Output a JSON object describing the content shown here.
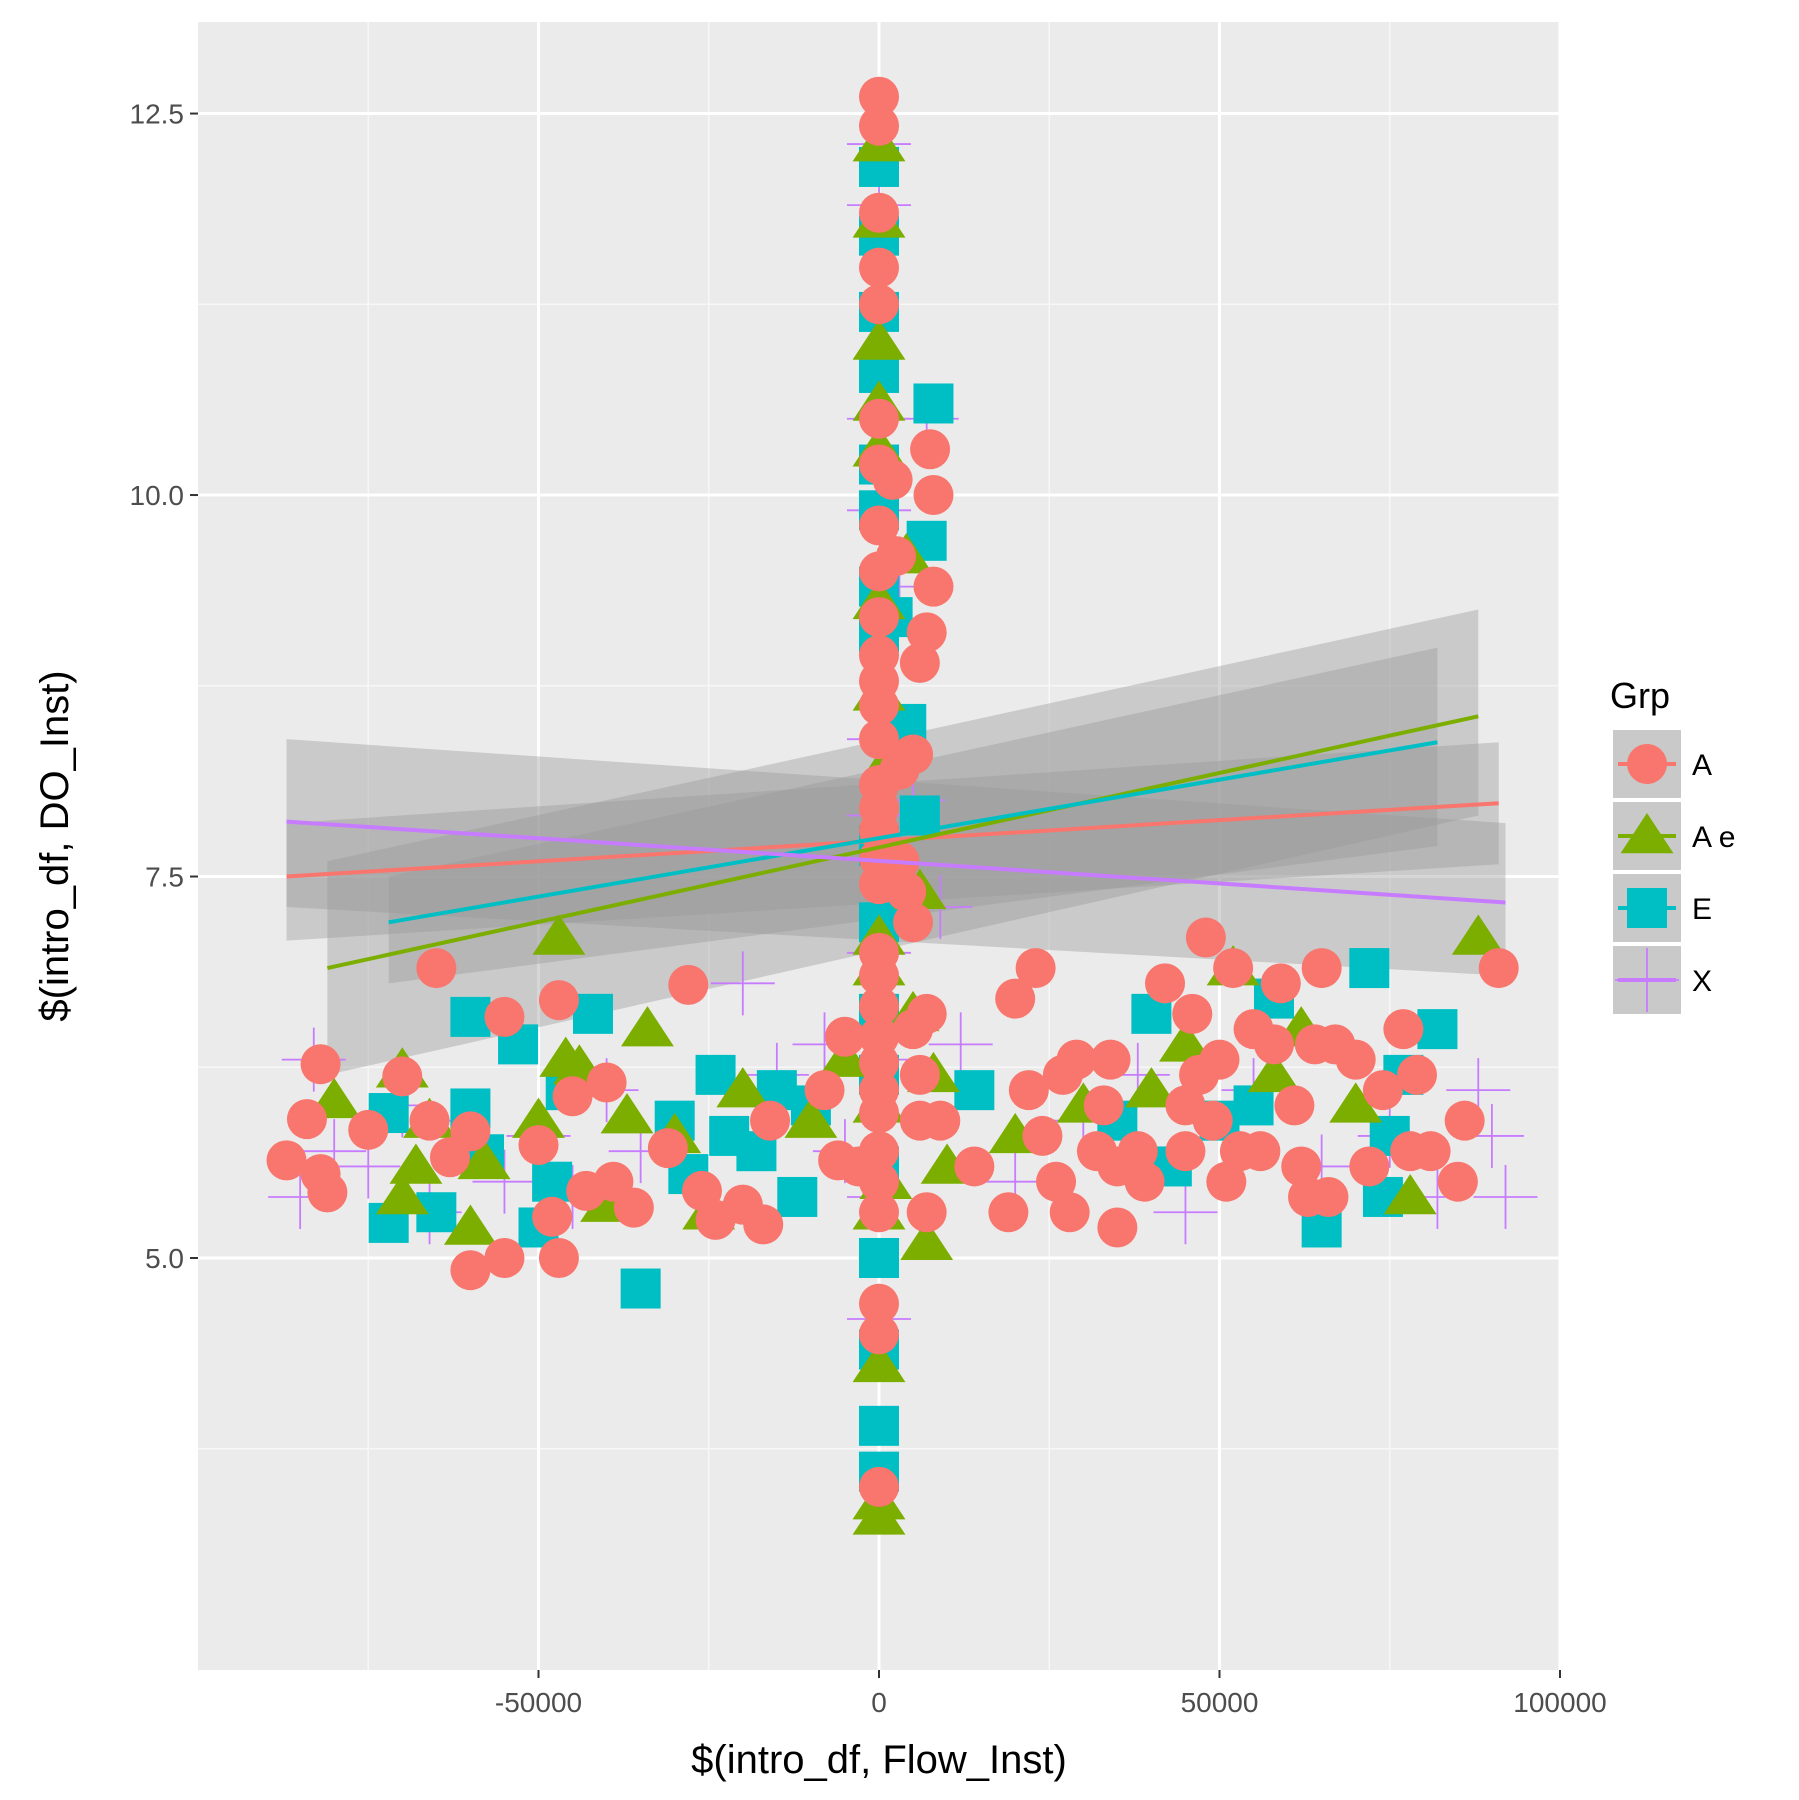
{
  "chart_data": {
    "type": "scatter",
    "xlabel": "$(intro_df, Flow_Inst)",
    "ylabel": "$(intro_df, DO_Inst)",
    "xlim": [
      -100000,
      100000
    ],
    "ylim": [
      2.3,
      13.1
    ],
    "x_ticks": [
      -50000,
      0,
      50000,
      100000
    ],
    "x_tick_labels": [
      "-50000",
      "0",
      "50000",
      "100000"
    ],
    "y_ticks": [
      5.0,
      7.5,
      10.0,
      12.5
    ],
    "y_tick_labels": [
      "5.0",
      "7.5",
      "10.0",
      "12.5"
    ],
    "grid": true,
    "background": "#ebebeb",
    "legend": {
      "title": "Grp",
      "placement": "right"
    },
    "series": [
      {
        "name": "A",
        "shape": "circle",
        "color": "#f8766d",
        "trend": {
          "x": [
            -87000,
            91000
          ],
          "y": [
            7.5,
            7.98
          ],
          "ci_low": [
            7.08,
            7.58
          ],
          "ci_high": [
            7.85,
            8.38
          ]
        },
        "points": [
          [
            -87000,
            5.64
          ],
          [
            -82000,
            5.55
          ],
          [
            -81000,
            5.43
          ],
          [
            -82000,
            6.27
          ],
          [
            -84000,
            5.91
          ],
          [
            -75000,
            5.84
          ],
          [
            -70000,
            6.19
          ],
          [
            -66000,
            5.9
          ],
          [
            -65000,
            6.9
          ],
          [
            -63000,
            5.66
          ],
          [
            -60000,
            5.83
          ],
          [
            -60000,
            4.92
          ],
          [
            -55000,
            6.58
          ],
          [
            -55000,
            5.0
          ],
          [
            -50000,
            5.74
          ],
          [
            -48000,
            5.27
          ],
          [
            -47000,
            6.69
          ],
          [
            -47000,
            5.0
          ],
          [
            -45000,
            6.06
          ],
          [
            -43000,
            5.44
          ],
          [
            -40000,
            6.15
          ],
          [
            -39000,
            5.5
          ],
          [
            -36000,
            5.33
          ],
          [
            -31000,
            5.72
          ],
          [
            -28000,
            6.79
          ],
          [
            -26000,
            5.44
          ],
          [
            -24000,
            5.25
          ],
          [
            -20000,
            5.35
          ],
          [
            -17000,
            5.22
          ],
          [
            -16000,
            5.9
          ],
          [
            -8000,
            6.1
          ],
          [
            -6000,
            5.64
          ],
          [
            -5000,
            6.45
          ],
          [
            -3000,
            5.6
          ],
          [
            0,
            12.61
          ],
          [
            0,
            12.42
          ],
          [
            0,
            11.85
          ],
          [
            0,
            11.49
          ],
          [
            0,
            11.25
          ],
          [
            0,
            10.5
          ],
          [
            0,
            10.2
          ],
          [
            0,
            9.8
          ],
          [
            0,
            9.5
          ],
          [
            0,
            9.2
          ],
          [
            0,
            8.95
          ],
          [
            0,
            8.78
          ],
          [
            0,
            8.62
          ],
          [
            0,
            8.4
          ],
          [
            0,
            8.1
          ],
          [
            0,
            7.95
          ],
          [
            0,
            7.8
          ],
          [
            0,
            7.62
          ],
          [
            0,
            7.45
          ],
          [
            0,
            7.0
          ],
          [
            0,
            6.85
          ],
          [
            0,
            6.65
          ],
          [
            0,
            6.45
          ],
          [
            0,
            6.28
          ],
          [
            0,
            6.1
          ],
          [
            0,
            5.95
          ],
          [
            0,
            5.7
          ],
          [
            0,
            5.5
          ],
          [
            0,
            5.3
          ],
          [
            0,
            4.7
          ],
          [
            0,
            4.5
          ],
          [
            0,
            3.5
          ],
          [
            2000,
            10.1
          ],
          [
            2500,
            9.6
          ],
          [
            3000,
            8.2
          ],
          [
            3000,
            7.6
          ],
          [
            4000,
            7.4
          ],
          [
            5000,
            8.3
          ],
          [
            5000,
            7.2
          ],
          [
            5000,
            6.5
          ],
          [
            6000,
            8.9
          ],
          [
            6000,
            6.2
          ],
          [
            6000,
            5.9
          ],
          [
            7000,
            9.1
          ],
          [
            7000,
            5.3
          ],
          [
            7000,
            6.6
          ],
          [
            8000,
            9.4
          ],
          [
            8000,
            10.0
          ],
          [
            7500,
            10.3
          ],
          [
            9000,
            5.9
          ],
          [
            14000,
            5.6
          ],
          [
            19000,
            5.3
          ],
          [
            20000,
            6.7
          ],
          [
            22000,
            6.1
          ],
          [
            23000,
            6.9
          ],
          [
            24000,
            5.8
          ],
          [
            26000,
            5.5
          ],
          [
            27000,
            6.2
          ],
          [
            28000,
            5.3
          ],
          [
            29000,
            6.3
          ],
          [
            32000,
            5.7
          ],
          [
            33000,
            6.0
          ],
          [
            34000,
            6.3
          ],
          [
            35000,
            5.2
          ],
          [
            35000,
            5.6
          ],
          [
            38000,
            5.7
          ],
          [
            39000,
            5.5
          ],
          [
            42000,
            6.8
          ],
          [
            45000,
            6.0
          ],
          [
            45000,
            5.7
          ],
          [
            46000,
            6.6
          ],
          [
            47000,
            6.2
          ],
          [
            48000,
            7.1
          ],
          [
            49000,
            5.9
          ],
          [
            50000,
            6.3
          ],
          [
            51000,
            5.5
          ],
          [
            52000,
            6.9
          ],
          [
            53000,
            5.7
          ],
          [
            55000,
            6.5
          ],
          [
            56000,
            5.7
          ],
          [
            58000,
            6.4
          ],
          [
            59000,
            6.8
          ],
          [
            61000,
            6.0
          ],
          [
            62000,
            5.6
          ],
          [
            63000,
            5.4
          ],
          [
            64000,
            6.4
          ],
          [
            65000,
            6.9
          ],
          [
            66000,
            5.4
          ],
          [
            67000,
            6.4
          ],
          [
            70000,
            6.3
          ],
          [
            72000,
            5.6
          ],
          [
            74000,
            6.1
          ],
          [
            77000,
            6.5
          ],
          [
            78000,
            5.7
          ],
          [
            79000,
            6.2
          ],
          [
            81000,
            5.7
          ],
          [
            85000,
            5.5
          ],
          [
            86000,
            5.9
          ],
          [
            91000,
            6.9
          ]
        ]
      },
      {
        "name": "A e",
        "shape": "triangle",
        "color": "#7cae00",
        "trend": {
          "x": [
            -81000,
            88000
          ],
          "y": [
            6.9,
            8.55
          ],
          "ci_low": [
            6.2,
            7.9
          ],
          "ci_high": [
            7.6,
            9.25
          ]
        },
        "points": [
          [
            -80000,
            6.03
          ],
          [
            -70000,
            6.23
          ],
          [
            -70000,
            5.4
          ],
          [
            -68000,
            5.6
          ],
          [
            -66000,
            5.9
          ],
          [
            -60000,
            5.2
          ],
          [
            -58000,
            5.63
          ],
          [
            -50000,
            5.9
          ],
          [
            -47000,
            7.1
          ],
          [
            -46000,
            6.3
          ],
          [
            -44000,
            6.25
          ],
          [
            -40000,
            5.35
          ],
          [
            -37000,
            5.93
          ],
          [
            -34000,
            6.5
          ],
          [
            -30000,
            5.8
          ],
          [
            -25000,
            5.3
          ],
          [
            -20000,
            6.1
          ],
          [
            -10000,
            5.9
          ],
          [
            -5000,
            6.3
          ],
          [
            0,
            12.3
          ],
          [
            0,
            11.8
          ],
          [
            0,
            11.0
          ],
          [
            0,
            10.6
          ],
          [
            0,
            10.3
          ],
          [
            0,
            9.3
          ],
          [
            0,
            8.7
          ],
          [
            0,
            7.1
          ],
          [
            0,
            6.9
          ],
          [
            0,
            6.0
          ],
          [
            0,
            5.3
          ],
          [
            0,
            4.3
          ],
          [
            0,
            3.4
          ],
          [
            0,
            3.3
          ],
          [
            1000,
            5.5
          ],
          [
            2000,
            8.3
          ],
          [
            4000,
            9.6
          ],
          [
            5000,
            6.6
          ],
          [
            6000,
            7.4
          ],
          [
            7000,
            5.1
          ],
          [
            8000,
            6.2
          ],
          [
            10000,
            5.6
          ],
          [
            20000,
            5.8
          ],
          [
            30000,
            6.0
          ],
          [
            40000,
            6.1
          ],
          [
            45000,
            6.4
          ],
          [
            52000,
            6.9
          ],
          [
            58000,
            6.2
          ],
          [
            62000,
            6.5
          ],
          [
            70000,
            6.0
          ],
          [
            78000,
            5.4
          ],
          [
            88000,
            7.1
          ]
        ]
      },
      {
        "name": "E",
        "shape": "square",
        "color": "#00bfc4",
        "trend": {
          "x": [
            -72000,
            82000
          ],
          "y": [
            7.2,
            8.38
          ],
          "ci_low": [
            6.8,
            7.7
          ],
          "ci_high": [
            7.5,
            9.0
          ]
        },
        "points": [
          [
            -72000,
            5.23
          ],
          [
            -72000,
            5.95
          ],
          [
            -65000,
            5.3
          ],
          [
            -60000,
            6.58
          ],
          [
            -60000,
            5.98
          ],
          [
            -58000,
            5.68
          ],
          [
            -53000,
            6.4
          ],
          [
            -50000,
            5.2
          ],
          [
            -48000,
            5.5
          ],
          [
            -46000,
            6.1
          ],
          [
            -42000,
            6.6
          ],
          [
            -35000,
            4.8
          ],
          [
            -30000,
            5.9
          ],
          [
            -28000,
            5.55
          ],
          [
            -24000,
            6.2
          ],
          [
            -22000,
            5.8
          ],
          [
            -18000,
            5.7
          ],
          [
            -15000,
            6.1
          ],
          [
            -12000,
            5.4
          ],
          [
            -10000,
            6.0
          ],
          [
            0,
            12.15
          ],
          [
            0,
            11.7
          ],
          [
            0,
            11.2
          ],
          [
            0,
            10.8
          ],
          [
            0,
            10.2
          ],
          [
            0,
            9.9
          ],
          [
            0,
            9.4
          ],
          [
            0,
            9.1
          ],
          [
            0,
            7.7
          ],
          [
            0,
            7.2
          ],
          [
            0,
            6.6
          ],
          [
            0,
            6.2
          ],
          [
            0,
            5.6
          ],
          [
            0,
            5.0
          ],
          [
            0,
            4.4
          ],
          [
            0,
            3.9
          ],
          [
            0,
            3.6
          ],
          [
            2000,
            9.2
          ],
          [
            4000,
            8.5
          ],
          [
            6000,
            7.9
          ],
          [
            7000,
            9.7
          ],
          [
            8000,
            10.6
          ],
          [
            14000,
            6.1
          ],
          [
            35000,
            5.9
          ],
          [
            40000,
            6.6
          ],
          [
            43000,
            5.6
          ],
          [
            50000,
            5.9
          ],
          [
            55000,
            6.0
          ],
          [
            58000,
            6.7
          ],
          [
            65000,
            5.2
          ],
          [
            72000,
            6.9
          ],
          [
            74000,
            5.4
          ],
          [
            75000,
            5.8
          ],
          [
            77000,
            6.2
          ],
          [
            82000,
            6.5
          ]
        ]
      },
      {
        "name": "X",
        "shape": "plus",
        "color": "#c77cff",
        "trend": {
          "x": [
            -87000,
            92000
          ],
          "y": [
            7.86,
            7.33
          ],
          "ci_low": [
            7.3,
            6.85
          ],
          "ci_high": [
            8.4,
            7.85
          ]
        },
        "points": [
          [
            -85000,
            5.4
          ],
          [
            -83000,
            6.3
          ],
          [
            -80000,
            5.7
          ],
          [
            -75000,
            5.6
          ],
          [
            -70000,
            6.0
          ],
          [
            -66000,
            5.3
          ],
          [
            -62000,
            5.9
          ],
          [
            -55000,
            5.5
          ],
          [
            -50000,
            5.8
          ],
          [
            -45000,
            5.4
          ],
          [
            -40000,
            6.1
          ],
          [
            -35000,
            5.7
          ],
          [
            -20000,
            6.8
          ],
          [
            -15000,
            6.2
          ],
          [
            -8000,
            6.4
          ],
          [
            -5000,
            5.7
          ],
          [
            0,
            12.3
          ],
          [
            0,
            11.9
          ],
          [
            0,
            10.5
          ],
          [
            0,
            9.9
          ],
          [
            0,
            8.4
          ],
          [
            0,
            7.9
          ],
          [
            0,
            7.0
          ],
          [
            0,
            6.3
          ],
          [
            0,
            5.4
          ],
          [
            0,
            4.6
          ],
          [
            3000,
            9.4
          ],
          [
            5000,
            8.0
          ],
          [
            7000,
            10.5
          ],
          [
            9000,
            7.3
          ],
          [
            12000,
            6.4
          ],
          [
            20000,
            5.5
          ],
          [
            30000,
            5.9
          ],
          [
            38000,
            6.2
          ],
          [
            45000,
            5.3
          ],
          [
            55000,
            6.1
          ],
          [
            65000,
            5.6
          ],
          [
            75000,
            5.8
          ],
          [
            82000,
            5.4
          ],
          [
            88000,
            6.1
          ],
          [
            90000,
            5.8
          ],
          [
            92000,
            5.4
          ]
        ]
      }
    ]
  }
}
